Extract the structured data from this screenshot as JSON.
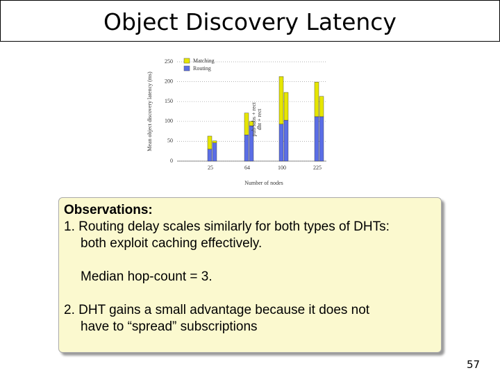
{
  "title": "Object Discovery Latency",
  "chart_data": {
    "type": "stacked-bar",
    "y_label": "Mean object discovery latency (ms)",
    "x_label": "Number of nodes",
    "categories": [
      "25",
      "64",
      "100",
      "225"
    ],
    "ylim": [
      0,
      250
    ],
    "yticks": [
      0,
      50,
      100,
      150,
      200,
      250
    ],
    "grid": true,
    "legend": [
      {
        "name": "Matching",
        "color": "#e6e600"
      },
      {
        "name": "Routing",
        "color": "#5b6ee6"
      }
    ],
    "bar_groups": [
      {
        "label": "pub/subs + rect",
        "routing": [
          30,
          66,
          93,
          112
        ],
        "matching": [
          33,
          55,
          120,
          87
        ]
      },
      {
        "label": "dht + rect",
        "routing": [
          46,
          89,
          103,
          112
        ],
        "matching": [
          5,
          11,
          70,
          51
        ]
      }
    ]
  },
  "observations": {
    "heading": "Observations:",
    "lines": [
      "1. Routing delay scales similarly for both types of DHTs:",
      "both exploit caching effectively.",
      "Median hop-count = 3.",
      "2. DHT gains a small advantage because it does not",
      "have to “spread” subscriptions"
    ]
  },
  "page_number": "57"
}
